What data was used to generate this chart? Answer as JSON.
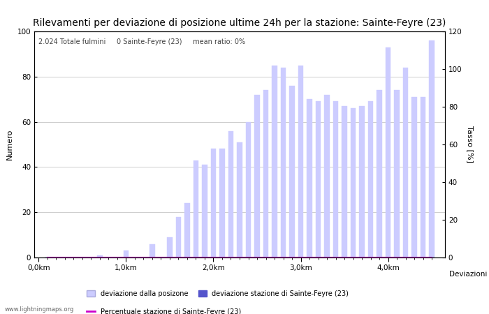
{
  "title": "Rilevamenti per deviazione di posizione ultime 24h per la stazione: Sainte-Feyre (23)",
  "xlabel": "Deviazioni",
  "ylabel_left": "Numero",
  "ylabel_right": "Tasso [%]",
  "annotation": "2.024 Totale fulmini     0 Sainte-Feyre (23)     mean ratio: 0%",
  "watermark": "www.lightningmaps.org",
  "bar_positions": [
    0.1,
    0.2,
    0.3,
    0.4,
    0.5,
    0.6,
    0.7,
    0.8,
    0.9,
    1.0,
    1.1,
    1.2,
    1.3,
    1.4,
    1.5,
    1.6,
    1.7,
    1.8,
    1.9,
    2.0,
    2.1,
    2.2,
    2.3,
    2.4,
    2.5,
    2.6,
    2.7,
    2.8,
    2.9,
    3.0,
    3.1,
    3.2,
    3.3,
    3.4,
    3.5,
    3.6,
    3.7,
    3.8,
    3.9,
    4.0,
    4.1,
    4.2,
    4.3,
    4.4,
    4.5
  ],
  "bar_values": [
    0,
    0,
    0,
    0,
    0,
    0,
    1,
    0,
    0,
    3,
    0,
    0,
    6,
    0,
    9,
    18,
    24,
    43,
    41,
    48,
    48,
    56,
    51,
    60,
    72,
    74,
    85,
    84,
    76,
    85,
    70,
    69,
    72,
    69,
    67,
    66,
    67,
    69,
    74,
    93,
    74,
    84,
    71,
    71,
    96
  ],
  "station_bar_values": [
    0,
    0,
    0,
    0,
    0,
    0,
    0,
    0,
    0,
    0,
    0,
    0,
    0,
    0,
    0,
    0,
    0,
    0,
    0,
    0,
    0,
    0,
    0,
    0,
    0,
    0,
    0,
    0,
    0,
    0,
    0,
    0,
    0,
    0,
    0,
    0,
    0,
    0,
    0,
    0,
    0,
    0,
    0,
    0,
    0
  ],
  "ratio_values": [
    0,
    0,
    0,
    0,
    0,
    0,
    0,
    0,
    0,
    0,
    0,
    0,
    0,
    0,
    0,
    0,
    0,
    0,
    0,
    0,
    0,
    0,
    0,
    0,
    0,
    0,
    0,
    0,
    0,
    0,
    0,
    0,
    0,
    0,
    0,
    0,
    0,
    0,
    0,
    0,
    0,
    0,
    0,
    0,
    0
  ],
  "bar_color_light": "#ccccff",
  "bar_color_dark": "#5555cc",
  "line_color": "#cc00cc",
  "background_color": "#ffffff",
  "grid_color": "#bbbbbb",
  "ylim_left": [
    0,
    100
  ],
  "ylim_right": [
    0,
    120
  ],
  "xtick_labels": [
    "0,0km",
    "1,0km",
    "2,0km",
    "3,0km",
    "4,0km"
  ],
  "xtick_positions": [
    0.0,
    1.0,
    2.0,
    3.0,
    4.0
  ],
  "title_fontsize": 10,
  "label_fontsize": 8,
  "tick_fontsize": 7.5,
  "legend_label_light": "deviazione dalla posizone",
  "legend_label_dark": "deviazione stazione di Sainte-Feyre (23)",
  "legend_label_line": "Percentuale stazione di Sainte-Feyre (23)"
}
